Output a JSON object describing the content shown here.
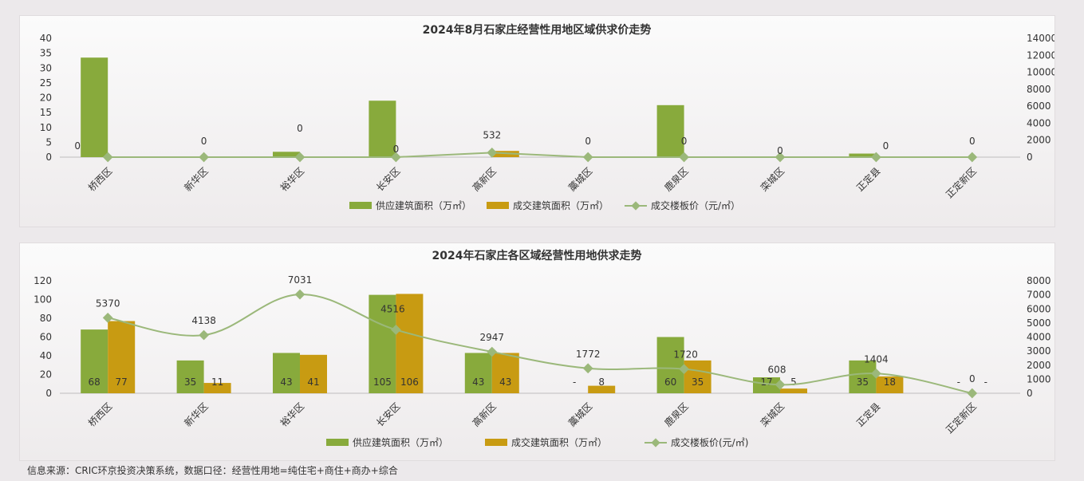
{
  "colors": {
    "supply": "#88aa3c",
    "deal": "#c89b12",
    "price": "#9bb87a"
  },
  "source_text": "信息来源：CRIC环京投资决策系统，数据口径：经营性用地=纯住宅+商住+商办+综合",
  "chart_data": [
    {
      "type": "bar",
      "title": "2024年8月石家庄经营性用地区域供求价走势",
      "categories": [
        "桥西区",
        "新华区",
        "裕华区",
        "长安区",
        "高新区",
        "藁城区",
        "鹿泉区",
        "栾城区",
        "正定县",
        "正定新区"
      ],
      "series": [
        {
          "name": "供应建筑面积（万㎡）",
          "type": "bar",
          "axis": "left",
          "values": [
            33.5,
            0,
            1.8,
            19,
            0,
            0,
            17.5,
            0,
            1.2,
            0
          ]
        },
        {
          "name": "成交建筑面积（万㎡）",
          "type": "bar",
          "axis": "left",
          "values": [
            0,
            0,
            0,
            0,
            2.1,
            0,
            0,
            0,
            0,
            0
          ]
        },
        {
          "name": "成交楼板价（元/㎡）",
          "type": "line",
          "axis": "right",
          "values": [
            0,
            0,
            0,
            0,
            532,
            0,
            0,
            0,
            0,
            0
          ],
          "labels": [
            "0",
            "0",
            "0",
            "0",
            "532",
            "0",
            "0",
            "0",
            "0",
            "0"
          ]
        }
      ],
      "left_axis": {
        "ylim": [
          0,
          40
        ],
        "ticks": [
          "0",
          "5",
          "10",
          "15",
          "20",
          "25",
          "30",
          "35",
          "40"
        ]
      },
      "right_axis": {
        "ylim": [
          0,
          14000
        ],
        "ticks": [
          "0",
          "2000",
          "4000",
          "6000",
          "8000",
          "10000",
          "12000",
          "14000"
        ]
      },
      "legend": "bottom",
      "grid": false
    },
    {
      "type": "bar",
      "title": "2024年石家庄各区域经营性用地供求走势",
      "categories": [
        "桥西区",
        "新华区",
        "裕华区",
        "长安区",
        "高新区",
        "藁城区",
        "鹿泉区",
        "栾城区",
        "正定县",
        "正定新区"
      ],
      "series": [
        {
          "name": "供应建筑面积（万㎡）",
          "type": "bar",
          "axis": "left",
          "values": [
            68,
            35,
            43,
            105,
            43,
            0,
            60,
            17,
            35,
            0
          ],
          "labels": [
            "68",
            "35",
            "43",
            "105",
            "43",
            "-",
            "60",
            "17",
            "35",
            "-"
          ]
        },
        {
          "name": "成交建筑面积（万㎡）",
          "type": "bar",
          "axis": "left",
          "values": [
            77,
            11,
            41,
            106,
            43,
            8,
            35,
            5,
            18,
            0
          ],
          "labels": [
            "77",
            "11",
            "41",
            "106",
            "43",
            "8",
            "35",
            "5",
            "18",
            "-"
          ]
        },
        {
          "name": "成交楼板价(元/㎡)",
          "type": "line",
          "axis": "right",
          "values": [
            5370,
            4138,
            7031,
            4516,
            2947,
            1772,
            1720,
            608,
            1404,
            0
          ],
          "labels": [
            "5370",
            "4138",
            "7031",
            "4516",
            "2947",
            "1772",
            "1720",
            "608",
            "1404",
            "0"
          ]
        }
      ],
      "left_axis": {
        "ylim": [
          0,
          120
        ],
        "ticks": [
          "0",
          "20",
          "40",
          "60",
          "80",
          "100",
          "120"
        ]
      },
      "right_axis": {
        "ylim": [
          0,
          8000
        ],
        "ticks": [
          "0",
          "1000",
          "2000",
          "3000",
          "4000",
          "5000",
          "6000",
          "7000",
          "8000"
        ]
      },
      "legend": "bottom",
      "grid": false
    }
  ]
}
